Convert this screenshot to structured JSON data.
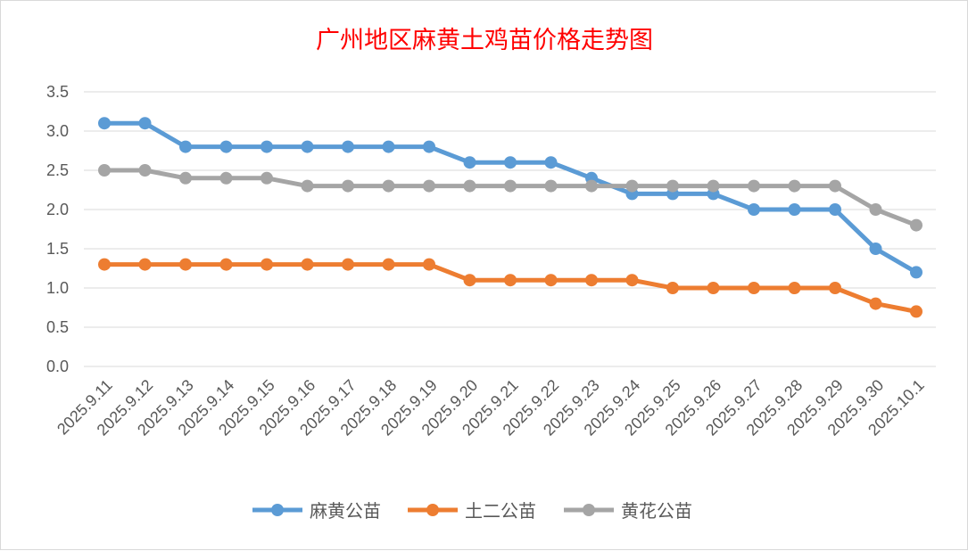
{
  "chart_data": {
    "type": "line",
    "title": "广州地区麻黄土鸡苗价格走势图",
    "xlabel": "",
    "ylabel": "",
    "ylim": [
      0,
      3.5
    ],
    "yticks": [
      "0.0",
      "0.5",
      "1.0",
      "1.5",
      "2.0",
      "2.5",
      "3.0",
      "3.5"
    ],
    "grid": true,
    "legend_position": "bottom",
    "categories": [
      "2025.9.11",
      "2025.9.12",
      "2025.9.13",
      "2025.9.14",
      "2025.9.15",
      "2025.9.16",
      "2025.9.17",
      "2025.9.18",
      "2025.9.19",
      "2025.9.20",
      "2025.9.21",
      "2025.9.22",
      "2025.9.23",
      "2025.9.24",
      "2025.9.25",
      "2025.9.26",
      "2025.9.27",
      "2025.9.28",
      "2025.9.29",
      "2025.9.30",
      "2025.10.1"
    ],
    "series": [
      {
        "name": "麻黄公苗",
        "color": "#5b9bd5",
        "values": [
          3.1,
          3.1,
          2.8,
          2.8,
          2.8,
          2.8,
          2.8,
          2.8,
          2.8,
          2.6,
          2.6,
          2.6,
          2.4,
          2.2,
          2.2,
          2.2,
          2.0,
          2.0,
          2.0,
          1.5,
          1.2
        ]
      },
      {
        "name": "土二公苗",
        "color": "#ed7d31",
        "values": [
          1.3,
          1.3,
          1.3,
          1.3,
          1.3,
          1.3,
          1.3,
          1.3,
          1.3,
          1.1,
          1.1,
          1.1,
          1.1,
          1.1,
          1.0,
          1.0,
          1.0,
          1.0,
          1.0,
          0.8,
          0.7
        ]
      },
      {
        "name": "黄花公苗",
        "color": "#a5a5a5",
        "values": [
          2.5,
          2.5,
          2.4,
          2.4,
          2.4,
          2.3,
          2.3,
          2.3,
          2.3,
          2.3,
          2.3,
          2.3,
          2.3,
          2.3,
          2.3,
          2.3,
          2.3,
          2.3,
          2.3,
          2.0,
          1.8
        ]
      }
    ]
  }
}
